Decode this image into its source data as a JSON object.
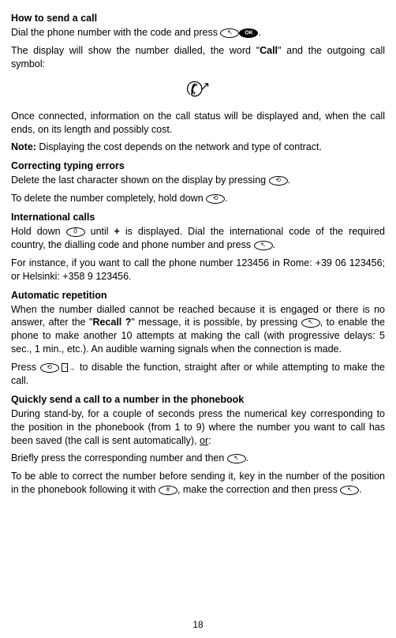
{
  "headings": {
    "howTo": "How to send a call",
    "correcting": "Correcting typing errors",
    "international": "International calls",
    "autoRep": "Automatic repetition",
    "quickSend": "Quickly send a call to a number in the phonebook"
  },
  "paragraphs": {
    "p1_pre": "Dial the phone number with the code and press ",
    "p1_post": ".",
    "p2_pre": "The display will show the number dialled, the word \"",
    "p2_bold": "Call",
    "p2_post": "\" and the outgoing call symbol:",
    "p3": "Once connected, information on the call status will be displayed and, when the call ends, on its length and possibly cost.",
    "p4_bold": "Note:",
    "p4_rest": " Displaying the cost depends on the network and type of contract.",
    "p5_pre": "Delete the last character shown on the display by pressing ",
    "p5_post": ".",
    "p6_pre": "To delete the number completely, hold down ",
    "p6_post": ".",
    "p7_pre": "Hold down ",
    "p7_mid1": " until ",
    "p7_plus": "+",
    "p7_mid2": " is displayed. Dial the international code of the required country, the dialling code and phone number and press ",
    "p7_post": ".",
    "p8": "For instance, if you want to call the phone number 123456 in Rome: +39 06 123456; or Helsinki: +358 9 123456.",
    "p9_pre": "When the number dialled cannot be reached because it is engaged or there is no answer, after the \"",
    "p9_bold": "Recall ?",
    "p9_post": "\" message, it is possible, by pressing ",
    "p9_rest": ", to enable the phone to make another 10 attempts at making the call (with progressive delays: 5 sec., 1 min., etc.). An audible warning signals when the connection is made.",
    "p10_pre": "Press ",
    "p10_post": " to disable the function, straight after or while attempting to make the call.",
    "p11_pre": "During stand-by, for a couple of seconds press the numerical key corresponding to the position in the phonebook (from 1 to 9) where the number you want to call has been saved (the call is sent automatically), ",
    "p11_or": "or",
    "p11_post": ":",
    "p12_pre": "Briefly press the corresponding number and then ",
    "p12_post": ".",
    "p13_pre": "To be able to correct the number before sending it, key in the number of the position in the phonebook following it with ",
    "p13_mid": ", make the correction and then press ",
    "p13_post": "."
  },
  "icons": {
    "ok": "OK",
    "zero": "0",
    "hash": "#"
  },
  "pageNumber": "18"
}
